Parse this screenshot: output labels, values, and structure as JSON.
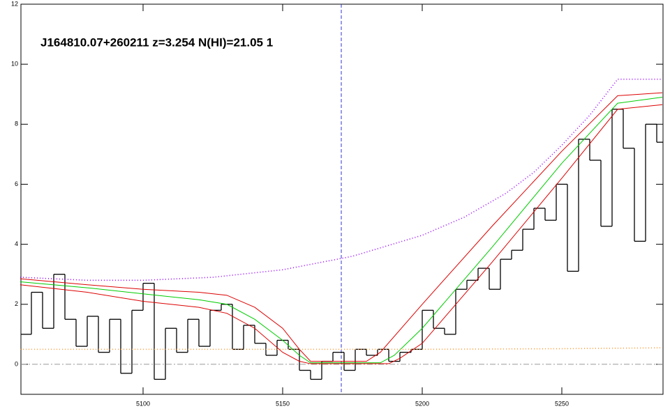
{
  "chart_data": {
    "type": "line",
    "annotation": "J164810.07+260211 z=3.254 N(HI)=21.05 1",
    "xlim": [
      5056.25,
      5286.25
    ],
    "ylim": [
      -1,
      12
    ],
    "xticks": [
      5100,
      5150,
      5200,
      5250
    ],
    "yticks": [
      0,
      2,
      4,
      6,
      8,
      10,
      12
    ],
    "zero_line": 0,
    "marker_x": 5171,
    "flux": {
      "color": "#000000",
      "x": [
        5058,
        5062,
        5066,
        5070,
        5074,
        5078,
        5082,
        5086,
        5090,
        5094,
        5098,
        5102,
        5106,
        5110,
        5114,
        5118,
        5122,
        5126,
        5130,
        5134,
        5138,
        5142,
        5146,
        5150,
        5154,
        5158,
        5162,
        5166,
        5170,
        5174,
        5178,
        5182,
        5186,
        5190,
        5194,
        5198,
        5202,
        5206,
        5210,
        5214,
        5218,
        5222,
        5226,
        5230,
        5234,
        5238,
        5242,
        5246,
        5250,
        5254,
        5258,
        5262,
        5266,
        5270,
        5274,
        5278,
        5282,
        5286
      ],
      "values": [
        1.0,
        2.4,
        1.2,
        3.0,
        1.5,
        0.6,
        1.6,
        0.4,
        1.5,
        -0.3,
        1.8,
        2.7,
        -0.5,
        1.2,
        0.4,
        1.5,
        0.6,
        1.8,
        2.0,
        0.5,
        1.3,
        0.7,
        0.3,
        0.8,
        0.5,
        -0.2,
        -0.5,
        0.1,
        0.4,
        -0.2,
        0.5,
        0.3,
        0.5,
        0.1,
        0.4,
        0.5,
        1.8,
        1.2,
        1.0,
        2.5,
        2.8,
        3.2,
        2.5,
        3.5,
        3.8,
        4.5,
        5.2,
        4.8,
        6.0,
        3.1,
        7.5,
        6.8,
        4.6,
        8.5,
        7.2,
        4.1,
        8.0,
        7.4
      ]
    },
    "series": [
      {
        "color": "#00cc00",
        "dash": "",
        "x": [
          5056,
          5080,
          5100,
          5120,
          5130,
          5140,
          5150,
          5156,
          5160,
          5185,
          5190,
          5200,
          5225,
          5250,
          5270,
          5286
        ],
        "values": [
          2.75,
          2.55,
          2.35,
          2.15,
          2.0,
          1.5,
          0.8,
          0.3,
          0.05,
          0.05,
          0.3,
          1.2,
          3.9,
          6.7,
          8.7,
          8.9
        ]
      },
      {
        "color": "#dd0000",
        "dash": "",
        "x": [
          5056,
          5080,
          5100,
          5120,
          5130,
          5140,
          5150,
          5156,
          5160,
          5180,
          5185,
          5200,
          5225,
          5250,
          5270,
          5286
        ],
        "values": [
          2.85,
          2.65,
          2.5,
          2.4,
          2.3,
          1.9,
          1.2,
          0.5,
          0.1,
          0.1,
          0.4,
          2.0,
          4.6,
          7.1,
          8.95,
          9.05
        ]
      },
      {
        "color": "#dd0000",
        "dash": "",
        "x": [
          5056,
          5080,
          5100,
          5120,
          5130,
          5140,
          5150,
          5156,
          5160,
          5188,
          5192,
          5200,
          5225,
          5250,
          5270,
          5286
        ],
        "values": [
          2.65,
          2.4,
          2.1,
          1.9,
          1.7,
          1.2,
          0.4,
          0.1,
          0.02,
          0.02,
          0.2,
          0.7,
          3.4,
          6.2,
          8.5,
          8.65
        ]
      },
      {
        "color": "#9900ff",
        "dash": "1 3",
        "x": [
          5056,
          5080,
          5100,
          5125,
          5150,
          5175,
          5200,
          5215,
          5230,
          5240,
          5250,
          5260,
          5270,
          5286
        ],
        "values": [
          2.9,
          2.8,
          2.8,
          2.9,
          3.15,
          3.6,
          4.3,
          4.9,
          5.7,
          6.4,
          7.3,
          8.3,
          9.5,
          9.5
        ]
      },
      {
        "color": "#ff9933",
        "dash": "1 3",
        "x": [
          5056,
          5100,
          5150,
          5200,
          5250,
          5286
        ],
        "values": [
          0.5,
          0.5,
          0.5,
          0.5,
          0.52,
          0.55
        ]
      }
    ]
  }
}
